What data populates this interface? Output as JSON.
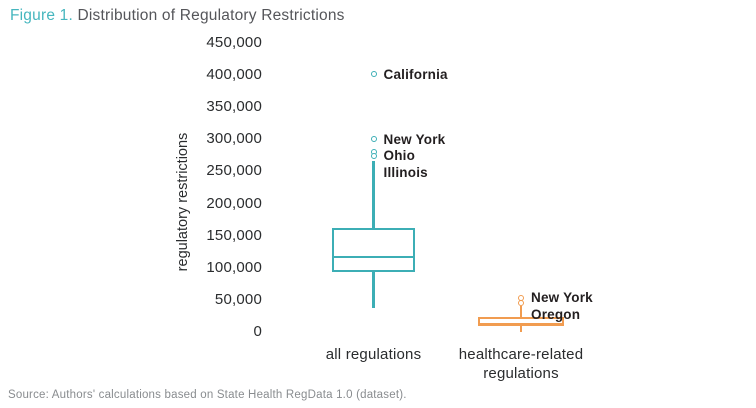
{
  "figure": {
    "label": "Figure 1.",
    "title": "Distribution of Regulatory Restrictions"
  },
  "source": "Source: Authors' calculations based on State Health RegData 1.0 (dataset).",
  "colors": {
    "teal": "#3CAEB5",
    "orange": "#F19C50",
    "figure_label_teal": "#45B6BE",
    "title_gray": "#55565A",
    "axis_text": "#2A2C2E",
    "outlier_label_text": "#231F20",
    "source_text": "#898C8F"
  },
  "chart_data": {
    "type": "boxplot",
    "title": "Figure 1. Distribution of Regulatory Restrictions",
    "ylabel": "regulatory restrictions",
    "ylim": [
      0,
      450000
    ],
    "grid": false,
    "yticks": [
      {
        "label": "450,000",
        "value": 450000
      },
      {
        "label": "400,000",
        "value": 400000
      },
      {
        "label": "350,000",
        "value": 350000
      },
      {
        "label": "300,000",
        "value": 300000
      },
      {
        "label": "250,000",
        "value": 250000
      },
      {
        "label": "200,000",
        "value": 200000
      },
      {
        "label": "150,000",
        "value": 150000
      },
      {
        "label": "100,000",
        "value": 100000
      },
      {
        "label": "50,000",
        "value": 50000
      },
      {
        "label": "0",
        "value": 0
      }
    ],
    "series": [
      {
        "name": "all regulations",
        "color": "#3CAEB5",
        "q1": 94000,
        "median": 120000,
        "q3": 162500,
        "whisker_low": 37500,
        "whisker_high": 267000,
        "outliers": [
          {
            "label": "California",
            "value": 401500
          },
          {
            "label": "New York",
            "value": 300000
          },
          {
            "label": "Ohio",
            "value": 281000
          },
          {
            "label": "Illinois",
            "value": 274000
          }
        ]
      },
      {
        "name": "healthcare-related regulations",
        "color": "#F19C50",
        "q1": 9000,
        "median": 16000,
        "q3": 23500,
        "whisker_low": 500,
        "whisker_high": 40000,
        "outliers": [
          {
            "label": "New York",
            "value": 53000
          },
          {
            "label": "Oregon",
            "value": 45000
          }
        ]
      }
    ]
  }
}
